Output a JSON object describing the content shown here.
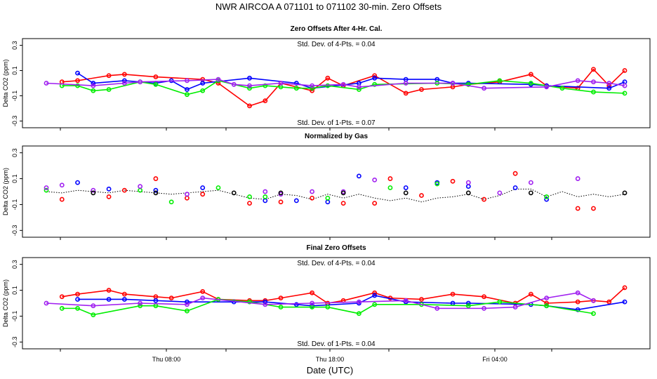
{
  "title": "NWR   AIRCOA A   071101 to 071102   30-min. Zero Offsets",
  "xlabel": "Date (UTC)",
  "xticks": [
    "Thu 08:00",
    "Thu 18:00",
    "Fri 04:00"
  ],
  "colors": {
    "red": "#ff0000",
    "blue": "#0000ff",
    "green": "#00ee00",
    "purple": "#a020f0",
    "black": "#000000"
  },
  "chart_data": [
    {
      "type": "line",
      "title": "Zero Offsets After 4-Hr. Cal.",
      "ylabel": "Delta CO2 (ppm)",
      "ylim": [
        -0.32,
        0.32
      ],
      "yticks": [
        "-0.3",
        "-0.1",
        "0.1",
        "0.3"
      ],
      "annotation_top": "Std. Dev. of 4-Pts. =  0.04",
      "annotation_bottom": "Std. Dev. of 1-Pts. =  0.07",
      "x": [
        0,
        1,
        2,
        3,
        4,
        5,
        6,
        7,
        8,
        9,
        10,
        11,
        12,
        13,
        14,
        15,
        16,
        17,
        18,
        19,
        20,
        21,
        22,
        23,
        24,
        25,
        26,
        27,
        28,
        29,
        30,
        31,
        32,
        33,
        34,
        35,
        36,
        37
      ],
      "series": [
        {
          "name": "red",
          "values": [
            null,
            0.01,
            0.02,
            null,
            0.06,
            0.07,
            null,
            0.05,
            null,
            null,
            0.03,
            0.0,
            null,
            -0.18,
            -0.14,
            0.0,
            null,
            -0.06,
            0.04,
            -0.02,
            null,
            0.06,
            null,
            -0.08,
            -0.05,
            null,
            -0.03,
            -0.01,
            null,
            0.01,
            null,
            0.07,
            -0.02,
            null,
            -0.04,
            0.11,
            -0.02,
            0.1
          ]
        },
        {
          "name": "blue",
          "values": [
            null,
            null,
            0.08,
            -0.0,
            null,
            0.02,
            null,
            0.0,
            0.02,
            -0.05,
            -0.0,
            null,
            null,
            0.04,
            null,
            null,
            0.0,
            -0.04,
            null,
            null,
            0.0,
            0.04,
            null,
            0.03,
            null,
            0.03,
            0.0,
            0.0,
            null,
            null,
            null,
            -0.01,
            -0.02,
            null,
            null,
            null,
            -0.04,
            0.01
          ]
        },
        {
          "name": "green",
          "values": [
            null,
            -0.02,
            -0.02,
            -0.06,
            -0.05,
            null,
            0.01,
            -0.01,
            null,
            -0.09,
            -0.06,
            0.02,
            null,
            -0.04,
            -0.02,
            -0.03,
            -0.04,
            -0.04,
            -0.02,
            null,
            -0.05,
            -0.01,
            null,
            null,
            null,
            0.0,
            null,
            -0.01,
            null,
            0.02,
            null,
            0.0,
            null,
            -0.04,
            null,
            -0.07,
            null,
            -0.08
          ]
        },
        {
          "name": "purple",
          "values": [
            0.0,
            null,
            null,
            -0.02,
            null,
            0.0,
            0.01,
            null,
            null,
            0.02,
            null,
            0.03,
            -0.01,
            -0.02,
            null,
            0.0,
            null,
            -0.02,
            null,
            -0.01,
            -0.03,
            null,
            null,
            0.0,
            null,
            null,
            0.0,
            null,
            -0.04,
            null,
            null,
            null,
            -0.03,
            null,
            0.02,
            0.01,
            0.0,
            -0.02
          ]
        }
      ]
    },
    {
      "type": "line",
      "title": "Normalized by Gas",
      "ylabel": "Delta CO2 (ppm)",
      "ylim": [
        -0.32,
        0.32
      ],
      "yticks": [
        "-0.3",
        "-0.1",
        "0.1",
        "0.3"
      ],
      "x": [
        0,
        1,
        2,
        3,
        4,
        5,
        6,
        7,
        8,
        9,
        10,
        11,
        12,
        13,
        14,
        15,
        16,
        17,
        18,
        19,
        20,
        21,
        22,
        23,
        24,
        25,
        26,
        27,
        28,
        29,
        30,
        31,
        32,
        33,
        34,
        35,
        36,
        37
      ],
      "reference_line": [
        0.0,
        -0.01,
        0.01,
        0.0,
        -0.01,
        0.01,
        0.0,
        -0.01,
        -0.02,
        -0.01,
        0.0,
        0.01,
        -0.02,
        -0.05,
        -0.06,
        -0.02,
        -0.03,
        -0.06,
        -0.02,
        -0.05,
        -0.02,
        -0.05,
        -0.07,
        -0.05,
        -0.08,
        -0.05,
        -0.04,
        -0.02,
        -0.06,
        -0.03,
        0.02,
        0.02,
        -0.04,
        0.0,
        -0.04,
        -0.02,
        -0.04,
        -0.02
      ],
      "series": [
        {
          "name": "red",
          "values": [
            null,
            -0.06,
            null,
            null,
            -0.04,
            0.01,
            null,
            0.1,
            null,
            -0.05,
            -0.02,
            null,
            null,
            -0.09,
            null,
            -0.08,
            null,
            -0.05,
            null,
            -0.09,
            null,
            -0.09,
            0.1,
            null,
            -0.03,
            null,
            0.08,
            null,
            -0.06,
            null,
            0.14,
            null,
            null,
            null,
            -0.13,
            -0.13,
            null,
            null
          ]
        },
        {
          "name": "blue",
          "values": [
            null,
            null,
            0.07,
            null,
            0.02,
            null,
            null,
            0.01,
            null,
            null,
            0.03,
            null,
            null,
            null,
            -0.07,
            null,
            -0.07,
            null,
            -0.08,
            null,
            0.12,
            null,
            null,
            0.03,
            null,
            0.07,
            null,
            0.04,
            null,
            null,
            0.03,
            null,
            -0.06,
            null,
            null,
            null,
            null,
            null
          ]
        },
        {
          "name": "green",
          "values": [
            0.01,
            null,
            null,
            null,
            null,
            null,
            0.01,
            null,
            -0.08,
            null,
            null,
            0.03,
            null,
            -0.04,
            -0.04,
            null,
            null,
            null,
            -0.05,
            null,
            null,
            null,
            0.03,
            null,
            null,
            0.06,
            null,
            null,
            null,
            null,
            null,
            null,
            -0.04,
            null,
            null,
            null,
            null,
            null
          ]
        },
        {
          "name": "purple",
          "values": [
            0.03,
            0.05,
            null,
            0.01,
            null,
            null,
            0.04,
            null,
            null,
            -0.02,
            null,
            null,
            null,
            null,
            0.0,
            -0.02,
            null,
            0.0,
            null,
            0.0,
            null,
            0.09,
            null,
            null,
            null,
            null,
            null,
            0.07,
            null,
            -0.01,
            null,
            0.07,
            null,
            null,
            0.1,
            null,
            null,
            null
          ]
        },
        {
          "name": "black",
          "values": [
            null,
            null,
            null,
            -0.01,
            null,
            null,
            null,
            -0.01,
            null,
            null,
            null,
            null,
            -0.01,
            null,
            null,
            -0.01,
            null,
            null,
            null,
            -0.01,
            null,
            null,
            null,
            -0.01,
            null,
            null,
            null,
            -0.01,
            null,
            null,
            null,
            -0.01,
            null,
            null,
            null,
            null,
            null,
            -0.01
          ]
        }
      ]
    },
    {
      "type": "line",
      "title": "Final Zero Offsets",
      "ylabel": "Delta CO2 (ppm)",
      "ylim": [
        -0.32,
        0.32
      ],
      "yticks": [
        "-0.3",
        "-0.1",
        "0.1",
        "0.3"
      ],
      "annotation_top": "Std. Dev. of 4-Pts. =  0.04",
      "annotation_bottom": "Std. Dev. of 1-Pts. =  0.04",
      "x": [
        0,
        1,
        2,
        3,
        4,
        5,
        6,
        7,
        8,
        9,
        10,
        11,
        12,
        13,
        14,
        15,
        16,
        17,
        18,
        19,
        20,
        21,
        22,
        23,
        24,
        25,
        26,
        27,
        28,
        29,
        30,
        31,
        32,
        33,
        34,
        35,
        36,
        37
      ],
      "series": [
        {
          "name": "red",
          "values": [
            null,
            0.05,
            0.07,
            null,
            0.1,
            0.07,
            null,
            0.05,
            0.04,
            null,
            0.09,
            0.03,
            null,
            0.02,
            0.02,
            0.04,
            null,
            0.08,
            0.0,
            0.02,
            null,
            0.08,
            0.04,
            null,
            0.03,
            null,
            0.07,
            null,
            0.05,
            null,
            0.0,
            0.07,
            0.0,
            null,
            0.01,
            0.02,
            0.01,
            0.12
          ]
        },
        {
          "name": "blue",
          "values": [
            null,
            null,
            0.03,
            null,
            0.03,
            0.03,
            null,
            0.02,
            null,
            0.01,
            null,
            null,
            0.01,
            null,
            0.01,
            null,
            -0.01,
            -0.02,
            null,
            null,
            0.0,
            0.06,
            null,
            0.01,
            null,
            null,
            0.0,
            0.0,
            null,
            null,
            null,
            -0.01,
            -0.02,
            null,
            -0.05,
            null,
            null,
            0.01
          ]
        },
        {
          "name": "green",
          "values": [
            null,
            -0.04,
            -0.04,
            -0.09,
            null,
            null,
            -0.02,
            -0.02,
            null,
            -0.06,
            null,
            0.03,
            null,
            0.01,
            null,
            -0.03,
            null,
            -0.03,
            -0.03,
            null,
            -0.08,
            -0.01,
            null,
            null,
            -0.01,
            null,
            null,
            -0.02,
            null,
            0.01,
            null,
            null,
            -0.02,
            null,
            null,
            -0.08,
            null,
            null
          ]
        },
        {
          "name": "purple",
          "values": [
            0.0,
            null,
            null,
            -0.02,
            null,
            null,
            0.0,
            null,
            null,
            -0.01,
            0.04,
            null,
            null,
            null,
            -0.01,
            null,
            null,
            0.0,
            null,
            null,
            0.01,
            null,
            null,
            0.02,
            null,
            -0.04,
            null,
            null,
            -0.04,
            null,
            -0.03,
            null,
            0.04,
            null,
            0.08,
            0.02,
            null,
            null
          ]
        }
      ]
    }
  ]
}
